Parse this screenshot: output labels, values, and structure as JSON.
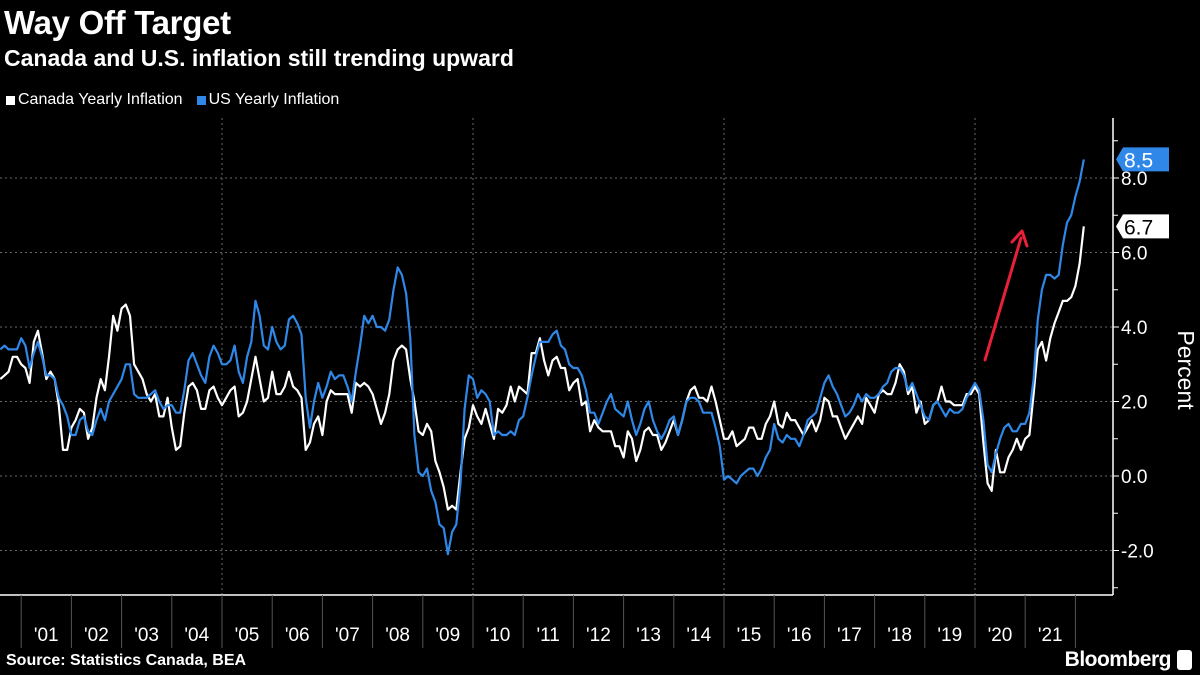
{
  "title": "Way Off Target",
  "subtitle": "Canada and U.S. inflation still trending upward",
  "source": "Source: Statistics Canada, BEA",
  "brand": "Bloomberg",
  "colors": {
    "canada": "#ffffff",
    "us": "#2f88e8",
    "arrow": "#e8203a",
    "grid": "#777777"
  },
  "chart_data": {
    "type": "line",
    "title": "Way Off Target",
    "subtitle": "Canada and U.S. inflation still trending upward",
    "ylabel": "Percent",
    "xlabel": "",
    "ylim": [
      -3.2,
      9.6
    ],
    "yticks": [
      "8.0",
      "6.0",
      "4.0",
      "2.0",
      "0.0",
      "-2.0"
    ],
    "ytick_values": [
      8,
      6,
      4,
      2,
      0,
      -2
    ],
    "xtick_labels": [
      "'01",
      "'02",
      "'03",
      "'04",
      "'05",
      "'06",
      "'07",
      "'08",
      "'09",
      "'10",
      "'11",
      "'12",
      "'13",
      "'14",
      "'15",
      "'16",
      "'17",
      "'18",
      "'19",
      "'20",
      "'21"
    ],
    "grid": true,
    "legend": "top-left",
    "x_start": "2000-08",
    "x_end": "2022-03",
    "frequency": "monthly",
    "annotation": "red arrow pointing upward over 2020-2021",
    "end_labels": {
      "us": "8.5",
      "canada": "6.7"
    },
    "series": [
      {
        "name": "Canada Yearly Inflation",
        "color": "#ffffff",
        "values": [
          2.6,
          2.7,
          2.8,
          3.2,
          3.2,
          3.0,
          2.9,
          2.5,
          3.6,
          3.9,
          3.3,
          2.6,
          2.8,
          2.6,
          1.9,
          0.7,
          0.7,
          1.3,
          1.5,
          1.8,
          1.7,
          1.0,
          1.3,
          2.1,
          2.6,
          2.3,
          3.2,
          4.3,
          3.9,
          4.5,
          4.6,
          4.3,
          3.0,
          2.8,
          2.6,
          2.2,
          2.0,
          2.2,
          1.6,
          1.6,
          2.1,
          1.3,
          0.7,
          0.8,
          1.7,
          2.4,
          2.5,
          2.3,
          1.8,
          1.8,
          2.3,
          2.4,
          2.1,
          1.9,
          2.1,
          2.3,
          2.4,
          1.6,
          1.7,
          2.0,
          2.6,
          3.2,
          2.6,
          2.0,
          2.1,
          2.8,
          2.2,
          2.2,
          2.4,
          2.8,
          2.4,
          2.3,
          2.1,
          0.7,
          0.9,
          1.4,
          1.6,
          1.1,
          2.0,
          2.3,
          2.2,
          2.2,
          2.2,
          2.2,
          1.7,
          2.5,
          2.4,
          2.5,
          2.4,
          2.2,
          1.8,
          1.4,
          1.7,
          2.2,
          3.1,
          3.4,
          3.5,
          3.4,
          2.6,
          2.0,
          1.2,
          1.1,
          1.4,
          1.2,
          0.4,
          0.1,
          -0.3,
          -0.9,
          -0.8,
          -0.9,
          0.1,
          1.0,
          1.3,
          1.9,
          1.6,
          1.4,
          1.8,
          1.4,
          1.0,
          1.8,
          1.7,
          1.9,
          2.4,
          2.0,
          2.4,
          2.3,
          2.2,
          3.3,
          3.3,
          3.7,
          3.1,
          2.7,
          3.1,
          3.2,
          2.9,
          2.9,
          2.3,
          2.5,
          2.6,
          1.9,
          2.0,
          1.2,
          1.5,
          1.3,
          1.2,
          1.2,
          1.2,
          0.8,
          0.8,
          0.5,
          1.2,
          1.0,
          0.4,
          0.7,
          1.2,
          1.3,
          1.1,
          1.1,
          0.7,
          0.9,
          1.2,
          1.5,
          1.1,
          1.5,
          2.0,
          2.3,
          2.4,
          2.1,
          2.1,
          2.0,
          2.4,
          2.0,
          1.5,
          1.0,
          1.0,
          1.2,
          0.8,
          0.9,
          1.0,
          1.3,
          1.3,
          1.0,
          1.0,
          1.4,
          1.6,
          2.0,
          1.4,
          1.3,
          1.7,
          1.5,
          1.5,
          1.3,
          1.1,
          1.3,
          1.5,
          1.2,
          1.5,
          2.1,
          2.0,
          1.6,
          1.6,
          1.3,
          1.0,
          1.2,
          1.4,
          1.6,
          1.4,
          2.1,
          1.9,
          1.7,
          2.2,
          2.3,
          2.2,
          2.2,
          2.5,
          3.0,
          2.8,
          2.2,
          2.4,
          1.7,
          2.0,
          1.4,
          1.5,
          1.9,
          2.0,
          2.4,
          2.0,
          2.0,
          1.9,
          1.9,
          1.9,
          2.2,
          2.2,
          2.4,
          2.2,
          0.9,
          -0.2,
          -0.4,
          0.7,
          0.1,
          0.1,
          0.5,
          0.7,
          1.0,
          0.7,
          1.0,
          1.1,
          2.2,
          3.4,
          3.6,
          3.1,
          3.7,
          4.1,
          4.4,
          4.7,
          4.7,
          4.8,
          5.1,
          5.7,
          6.7
        ]
      },
      {
        "name": "US Yearly Inflation",
        "color": "#2f88e8",
        "values": [
          3.4,
          3.5,
          3.4,
          3.4,
          3.4,
          3.7,
          3.5,
          2.9,
          3.3,
          3.6,
          3.2,
          2.7,
          2.7,
          2.6,
          2.1,
          1.9,
          1.6,
          1.1,
          1.1,
          1.5,
          1.6,
          1.2,
          1.1,
          1.5,
          1.8,
          1.5,
          2.0,
          2.2,
          2.4,
          2.6,
          3.0,
          3.0,
          2.2,
          2.1,
          2.1,
          2.1,
          2.2,
          2.3,
          2.0,
          1.8,
          1.9,
          1.9,
          1.7,
          1.7,
          2.3,
          3.1,
          3.3,
          3.0,
          2.7,
          2.5,
          3.2,
          3.5,
          3.3,
          3.0,
          3.0,
          3.1,
          3.5,
          2.8,
          2.5,
          3.2,
          3.6,
          4.7,
          4.3,
          3.5,
          3.4,
          4.0,
          3.6,
          3.4,
          3.5,
          4.2,
          4.3,
          4.1,
          3.8,
          2.1,
          1.3,
          2.0,
          2.5,
          2.1,
          2.4,
          2.8,
          2.6,
          2.7,
          2.7,
          2.4,
          2.0,
          2.8,
          3.5,
          4.3,
          4.1,
          4.3,
          4.0,
          4.0,
          3.9,
          4.2,
          5.0,
          5.6,
          5.4,
          4.9,
          3.7,
          1.1,
          0.1,
          0.0,
          0.2,
          -0.4,
          -0.7,
          -1.3,
          -1.4,
          -2.1,
          -1.5,
          -1.3,
          -0.2,
          1.8,
          2.7,
          2.6,
          2.1,
          2.3,
          2.2,
          2.0,
          1.1,
          1.2,
          1.1,
          1.1,
          1.2,
          1.1,
          1.5,
          1.6,
          2.1,
          2.7,
          3.2,
          3.6,
          3.6,
          3.6,
          3.8,
          3.9,
          3.5,
          3.4,
          3.0,
          2.9,
          2.9,
          2.7,
          2.3,
          1.7,
          1.7,
          1.4,
          1.7,
          2.0,
          2.2,
          1.8,
          1.7,
          1.6,
          2.0,
          1.5,
          1.1,
          1.4,
          1.8,
          2.0,
          1.5,
          1.2,
          1.0,
          1.2,
          1.5,
          1.6,
          1.1,
          1.5,
          2.0,
          2.1,
          2.1,
          2.0,
          1.7,
          1.7,
          1.7,
          1.3,
          0.8,
          -0.1,
          0.0,
          -0.1,
          -0.2,
          0.0,
          0.1,
          0.2,
          0.2,
          0.0,
          0.2,
          0.5,
          0.7,
          1.4,
          1.0,
          0.9,
          1.1,
          1.0,
          1.0,
          0.8,
          1.1,
          1.5,
          1.6,
          1.7,
          2.1,
          2.5,
          2.7,
          2.4,
          2.2,
          1.9,
          1.6,
          1.7,
          1.9,
          2.2,
          2.0,
          2.2,
          2.1,
          2.1,
          2.2,
          2.4,
          2.5,
          2.8,
          2.9,
          2.9,
          2.7,
          2.3,
          2.5,
          2.2,
          1.9,
          1.6,
          1.5,
          1.9,
          2.0,
          1.8,
          1.6,
          1.8,
          1.7,
          1.7,
          1.8,
          2.1,
          2.3,
          2.5,
          2.3,
          1.5,
          0.3,
          0.1,
          0.6,
          1.0,
          1.3,
          1.4,
          1.2,
          1.2,
          1.4,
          1.4,
          1.7,
          2.6,
          4.2,
          5.0,
          5.4,
          5.4,
          5.3,
          5.4,
          6.2,
          6.8,
          7.0,
          7.5,
          7.9,
          8.5
        ]
      }
    ]
  }
}
